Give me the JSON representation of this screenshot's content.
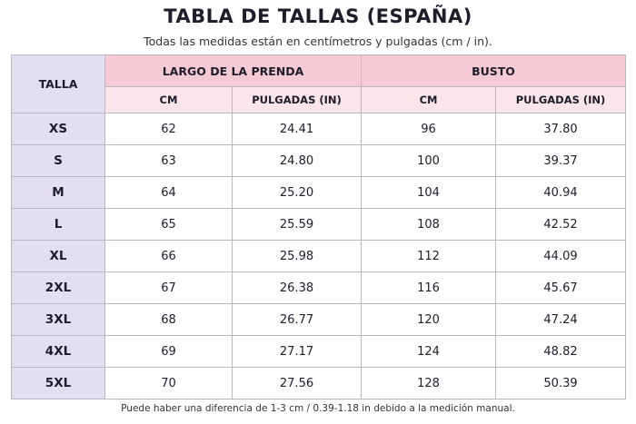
{
  "header": {
    "title": "TABLA DE TALLAS (ESPAÑA)",
    "subtitle": "Todas las medidas están en centímetros y pulgadas (cm / in)."
  },
  "table": {
    "size_header": "TALLA",
    "groups": [
      "LARGO DE LA PRENDA",
      "BUSTO"
    ],
    "subheaders": [
      "CM",
      "PULGADAS (IN)",
      "CM",
      "PULGADAS (IN)"
    ],
    "rows": [
      [
        "XS",
        "62",
        "24.41",
        "96",
        "37.80"
      ],
      [
        "S",
        "63",
        "24.80",
        "100",
        "39.37"
      ],
      [
        "M",
        "64",
        "25.20",
        "104",
        "40.94"
      ],
      [
        "L",
        "65",
        "25.59",
        "108",
        "42.52"
      ],
      [
        "XL",
        "66",
        "25.98",
        "112",
        "44.09"
      ],
      [
        "2XL",
        "67",
        "26.38",
        "116",
        "45.67"
      ],
      [
        "3XL",
        "68",
        "26.77",
        "120",
        "47.24"
      ],
      [
        "4XL",
        "69",
        "27.17",
        "124",
        "48.82"
      ],
      [
        "5XL",
        "70",
        "27.56",
        "128",
        "50.39"
      ]
    ]
  },
  "footer": {
    "note": "Puede haber una diferencia de 1-3 cm / 0.39-1.18 in debido a la medición manual."
  }
}
